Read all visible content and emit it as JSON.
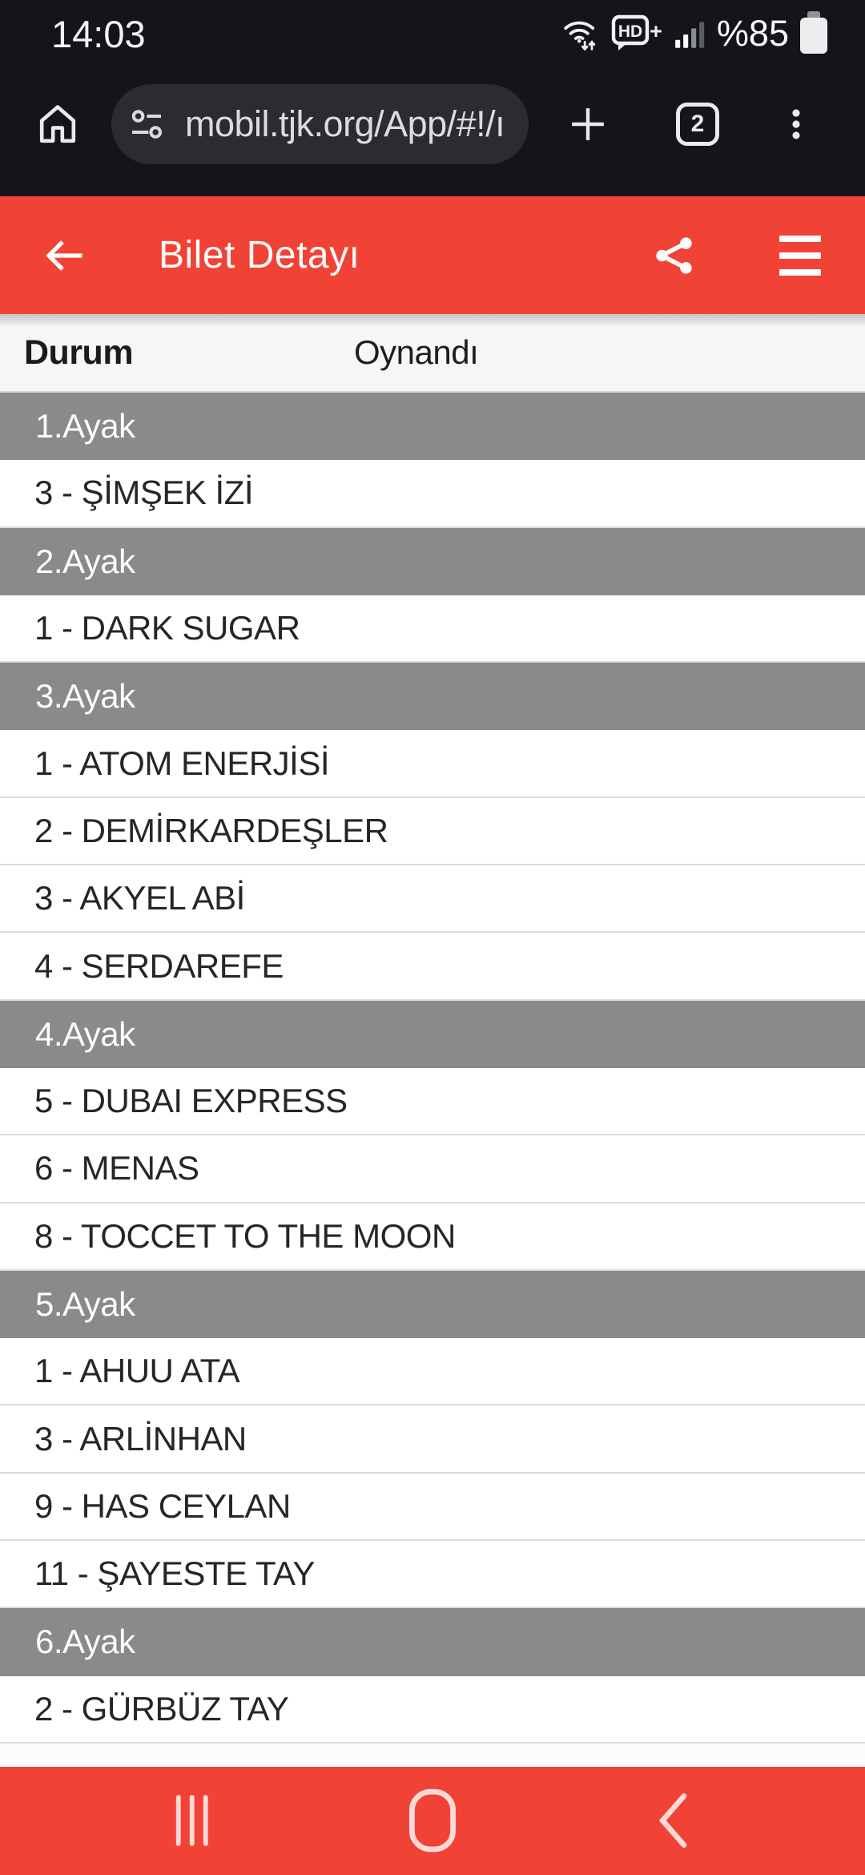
{
  "status_bar": {
    "time": "14:03",
    "network_badge": "HD",
    "network_badge_plus": "+",
    "battery_level": "%85"
  },
  "browser": {
    "url": "mobil.tjk.org/App/#!/ı",
    "tab_count": "2"
  },
  "app_header": {
    "title": "Bilet Detayı"
  },
  "ticket": {
    "status_label": "Durum",
    "status_value": "Oynandı",
    "legs": [
      {
        "label": "1.Ayak",
        "horses": [
          "3 - ŞİMŞEK İZİ"
        ]
      },
      {
        "label": "2.Ayak",
        "horses": [
          "1 - DARK SUGAR"
        ]
      },
      {
        "label": "3.Ayak",
        "horses": [
          "1 - ATOM ENERJİSİ",
          "2 - DEMİRKARDEŞLER",
          "3 - AKYEL ABİ",
          "4 - SERDAREFE"
        ]
      },
      {
        "label": "4.Ayak",
        "horses": [
          "5 - DUBAI EXPRESS",
          "6 - MENAS",
          "8 - TOCCET TO THE MOON"
        ]
      },
      {
        "label": "5.Ayak",
        "horses": [
          "1 - AHUU ATA",
          "3 - ARLİNHAN",
          "9 - HAS CEYLAN",
          "11 - ŞAYESTE TAY"
        ]
      },
      {
        "label": "6.Ayak",
        "horses": [
          "2 - GÜRBÜZ TAY"
        ]
      }
    ]
  },
  "icons": {
    "wifi-icon": "wifi-arcs-with-up-down-arrows",
    "hd-voice-icon": "speech-bubble-HD-plus",
    "signal-strength-icon": "four-ascending-bars",
    "battery-icon": "vertical-filled-battery",
    "home-icon": "house-outline",
    "site-settings-icon": "tune-sliders",
    "new-tab-icon": "plus",
    "tab-switcher-icon": "rounded-square-with-count",
    "browser-menu-icon": "kebab-three-dots",
    "back-icon": "arrow-left",
    "share-icon": "share-three-nodes",
    "app-menu-icon": "hamburger-three-bars",
    "nav-recents-icon": "three-vertical-bars",
    "nav-home-icon": "rounded-rect-outline",
    "nav-back-icon": "chevron-left"
  },
  "colors": {
    "accent_red": "#F04336",
    "leg_band": "#8A8A8A",
    "top_bar": "#141518",
    "url_pill": "#2A2C31",
    "row_border": "#DCDCDC",
    "status_row_bg": "#F6F6F8"
  }
}
